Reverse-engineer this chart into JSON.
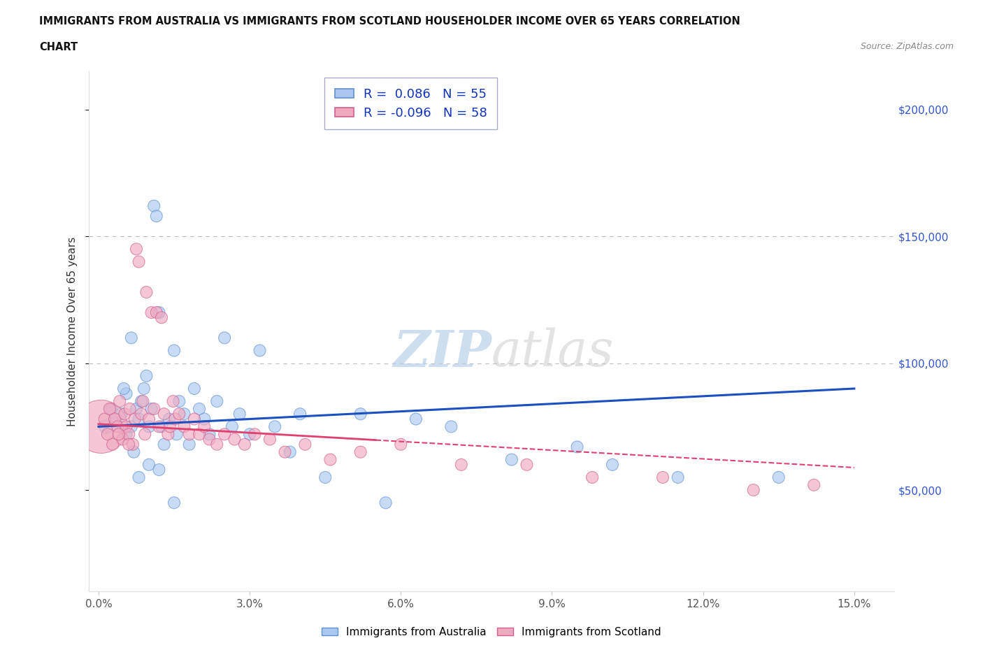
{
  "title_line1": "IMMIGRANTS FROM AUSTRALIA VS IMMIGRANTS FROM SCOTLAND HOUSEHOLDER INCOME OVER 65 YEARS CORRELATION",
  "title_line2": "CHART",
  "source_text": "Source: ZipAtlas.com",
  "ylabel": "Householder Income Over 65 years",
  "xlabel_vals": [
    0.0,
    3.0,
    6.0,
    9.0,
    12.0,
    15.0
  ],
  "ytick_vals": [
    50000,
    100000,
    150000,
    200000
  ],
  "xlim": [
    -0.2,
    15.8
  ],
  "ylim": [
    10000,
    215000
  ],
  "australia_color": "#aac8f0",
  "scotland_color": "#f0aac0",
  "australia_edge": "#6090d0",
  "scotland_edge": "#d06090",
  "trendline_australia_color": "#1a50c0",
  "trendline_scotland_color": "#e04070",
  "legend_australia_label": "Immigrants from Australia",
  "legend_scotland_label": "Immigrants from Scotland",
  "R_australia": "0.086",
  "N_australia": "55",
  "R_scotland": "-0.096",
  "N_scotland": "58",
  "watermark_zip": "ZIP",
  "watermark_atlas": "atlas",
  "aus_x": [
    0.15,
    0.25,
    0.35,
    0.45,
    0.55,
    0.55,
    0.65,
    0.65,
    0.75,
    0.8,
    0.85,
    0.9,
    0.95,
    1.0,
    1.05,
    1.1,
    1.15,
    1.2,
    1.25,
    1.3,
    1.4,
    1.5,
    1.55,
    1.6,
    1.7,
    1.8,
    1.9,
    2.0,
    2.1,
    2.2,
    2.35,
    2.5,
    2.65,
    2.8,
    3.0,
    3.2,
    3.5,
    3.8,
    4.0,
    4.5,
    5.2,
    5.7,
    6.3,
    7.0,
    8.2,
    9.5,
    10.2,
    11.5,
    13.5,
    0.5,
    0.7,
    0.8,
    1.0,
    1.2,
    1.5
  ],
  "aus_y": [
    75000,
    82000,
    78000,
    80000,
    72000,
    88000,
    75000,
    110000,
    82000,
    78000,
    85000,
    90000,
    95000,
    75000,
    82000,
    162000,
    158000,
    120000,
    75000,
    68000,
    78000,
    105000,
    72000,
    85000,
    80000,
    68000,
    90000,
    82000,
    78000,
    72000,
    85000,
    110000,
    75000,
    80000,
    72000,
    105000,
    75000,
    65000,
    80000,
    55000,
    80000,
    45000,
    78000,
    75000,
    62000,
    67000,
    60000,
    55000,
    55000,
    90000,
    65000,
    55000,
    60000,
    58000,
    45000
  ],
  "aus_size": [
    200,
    150,
    150,
    150,
    150,
    150,
    150,
    150,
    150,
    150,
    150,
    150,
    150,
    150,
    150,
    150,
    150,
    150,
    150,
    150,
    150,
    150,
    150,
    150,
    150,
    150,
    150,
    150,
    150,
    150,
    150,
    150,
    150,
    150,
    150,
    150,
    150,
    150,
    150,
    150,
    150,
    150,
    150,
    150,
    150,
    150,
    150,
    150,
    150,
    150,
    150,
    150,
    150,
    150,
    150
  ],
  "sco_x": [
    0.05,
    0.12,
    0.18,
    0.22,
    0.28,
    0.32,
    0.38,
    0.42,
    0.48,
    0.52,
    0.55,
    0.6,
    0.62,
    0.68,
    0.72,
    0.75,
    0.8,
    0.85,
    0.88,
    0.92,
    0.95,
    1.0,
    1.05,
    1.1,
    1.15,
    1.2,
    1.25,
    1.3,
    1.38,
    1.42,
    1.48,
    1.52,
    1.6,
    1.7,
    1.8,
    1.9,
    2.0,
    2.1,
    2.2,
    2.35,
    2.5,
    2.7,
    2.9,
    3.1,
    3.4,
    3.7,
    4.1,
    4.6,
    5.2,
    6.0,
    7.2,
    8.5,
    9.8,
    11.2,
    13.0,
    14.2,
    0.4,
    0.6
  ],
  "sco_y": [
    75000,
    78000,
    72000,
    82000,
    68000,
    78000,
    75000,
    85000,
    70000,
    80000,
    75000,
    72000,
    82000,
    68000,
    78000,
    145000,
    140000,
    80000,
    85000,
    72000,
    128000,
    78000,
    120000,
    82000,
    120000,
    75000,
    118000,
    80000,
    72000,
    75000,
    85000,
    78000,
    80000,
    75000,
    72000,
    78000,
    72000,
    75000,
    70000,
    68000,
    72000,
    70000,
    68000,
    72000,
    70000,
    65000,
    68000,
    62000,
    65000,
    68000,
    60000,
    60000,
    55000,
    55000,
    50000,
    52000,
    72000,
    68000
  ],
  "sco_size": [
    3000,
    150,
    150,
    150,
    150,
    150,
    150,
    150,
    150,
    150,
    150,
    150,
    150,
    150,
    150,
    150,
    150,
    150,
    150,
    150,
    150,
    150,
    150,
    150,
    150,
    150,
    150,
    150,
    150,
    150,
    150,
    150,
    150,
    150,
    150,
    150,
    150,
    150,
    150,
    150,
    150,
    150,
    150,
    150,
    150,
    150,
    150,
    150,
    150,
    150,
    150,
    150,
    150,
    150,
    150,
    150,
    150,
    150
  ]
}
